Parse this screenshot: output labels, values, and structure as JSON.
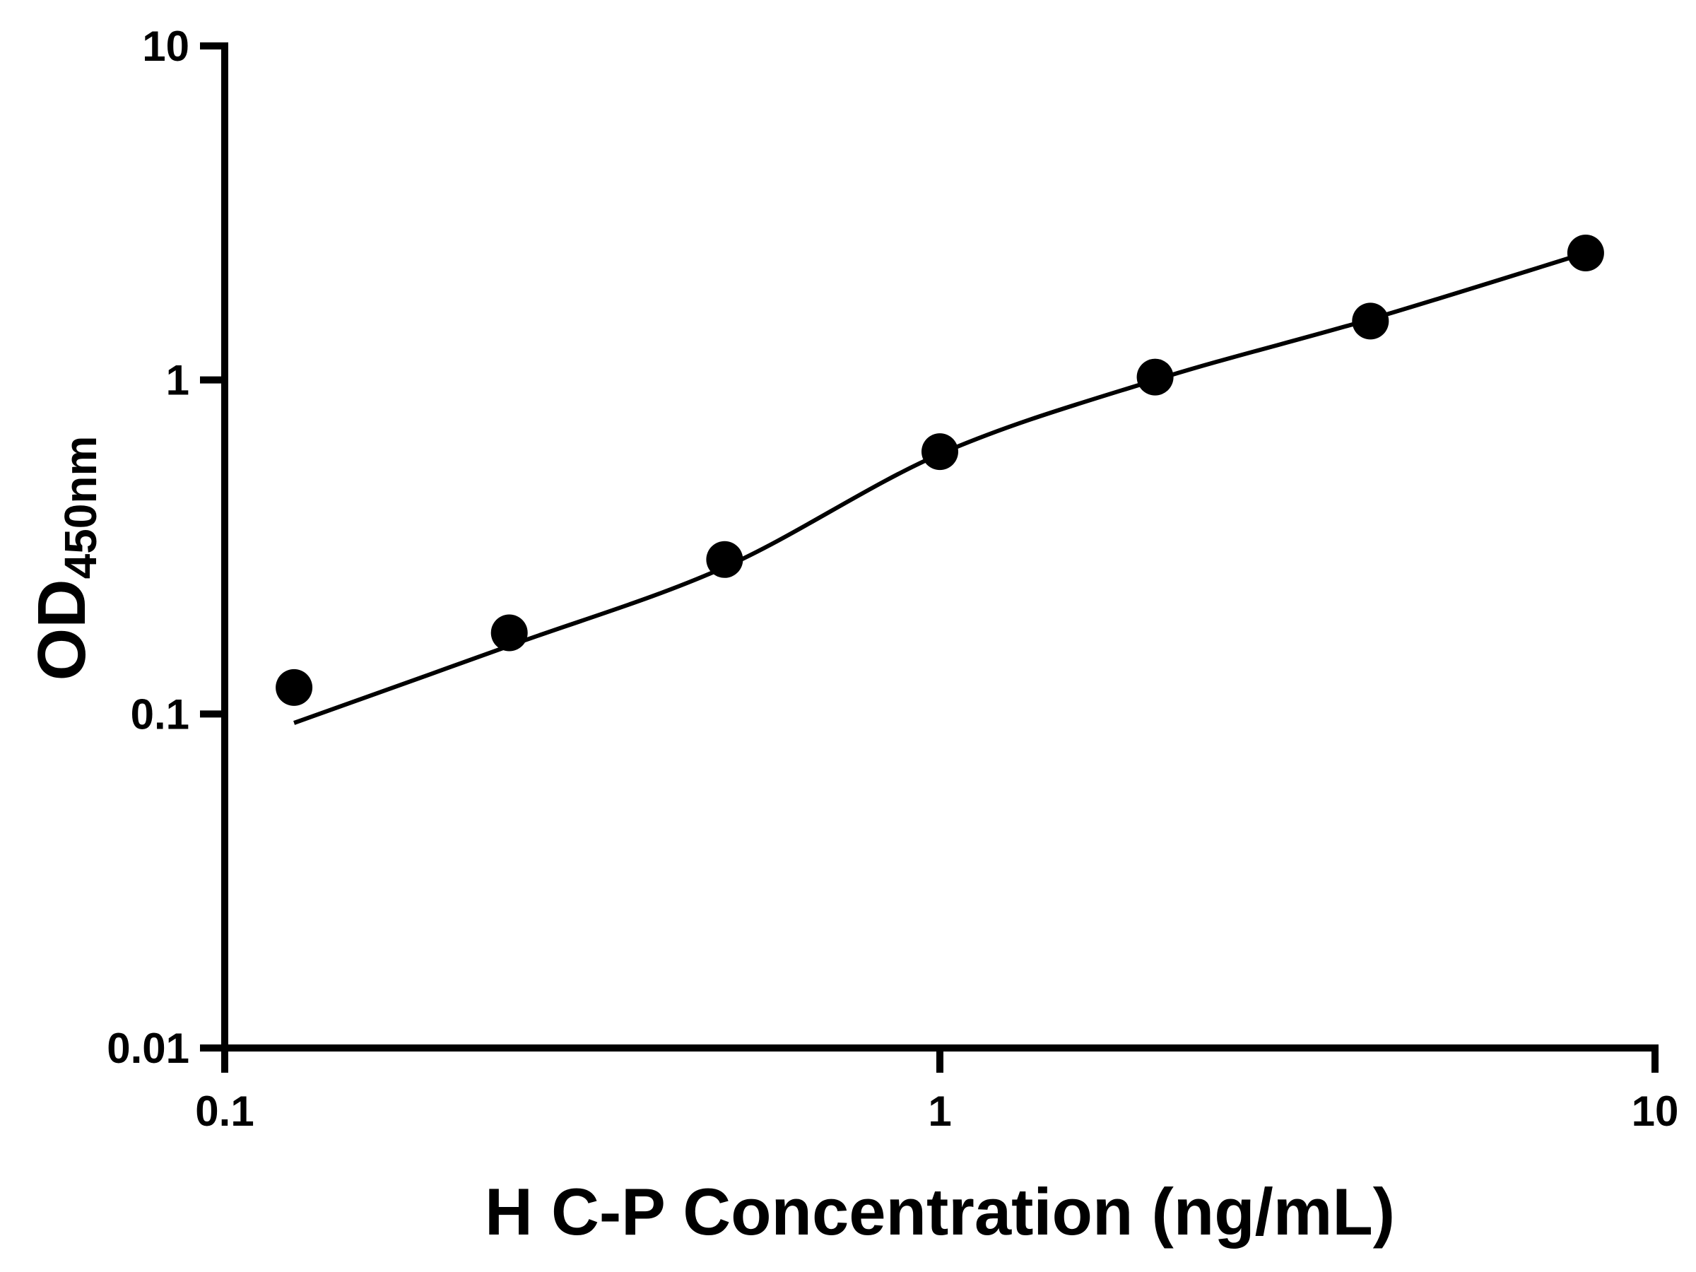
{
  "figure": {
    "background": "#ffffff"
  },
  "chart_data": {
    "type": "scatter",
    "title": "",
    "xlabel": "H C-P Concentration (ng/mL)",
    "ylabel": "OD",
    "ylabel_subscript": "450nm",
    "x_scale": "log",
    "y_scale": "log",
    "xlim": [
      0.1,
      10
    ],
    "ylim": [
      0.01,
      10
    ],
    "x_ticks": [
      0.1,
      1,
      10
    ],
    "x_tick_labels": [
      "0.1",
      "1",
      "10"
    ],
    "y_ticks": [
      0.01,
      0.1,
      1,
      10
    ],
    "y_tick_labels": [
      "0.01",
      "0.1",
      "1",
      "10"
    ],
    "grid": false,
    "legend_position": "none",
    "series": [
      {
        "name": "standard-curve-points",
        "type": "scatter",
        "marker": "circle",
        "color": "#000000",
        "x": [
          0.125,
          0.25,
          0.5,
          1,
          2,
          4,
          8
        ],
        "y": [
          0.12,
          0.175,
          0.29,
          0.61,
          1.02,
          1.5,
          2.4
        ]
      },
      {
        "name": "fitted-curve",
        "type": "line",
        "color": "#000000",
        "x": [
          0.125,
          0.25,
          0.5,
          1,
          2,
          4,
          8
        ],
        "y": [
          0.094,
          0.16,
          0.275,
          0.6,
          1.0,
          1.52,
          2.4
        ]
      }
    ],
    "colors": {
      "axis": "#000000",
      "marker": "#000000",
      "line": "#000000",
      "background": "#ffffff"
    }
  }
}
